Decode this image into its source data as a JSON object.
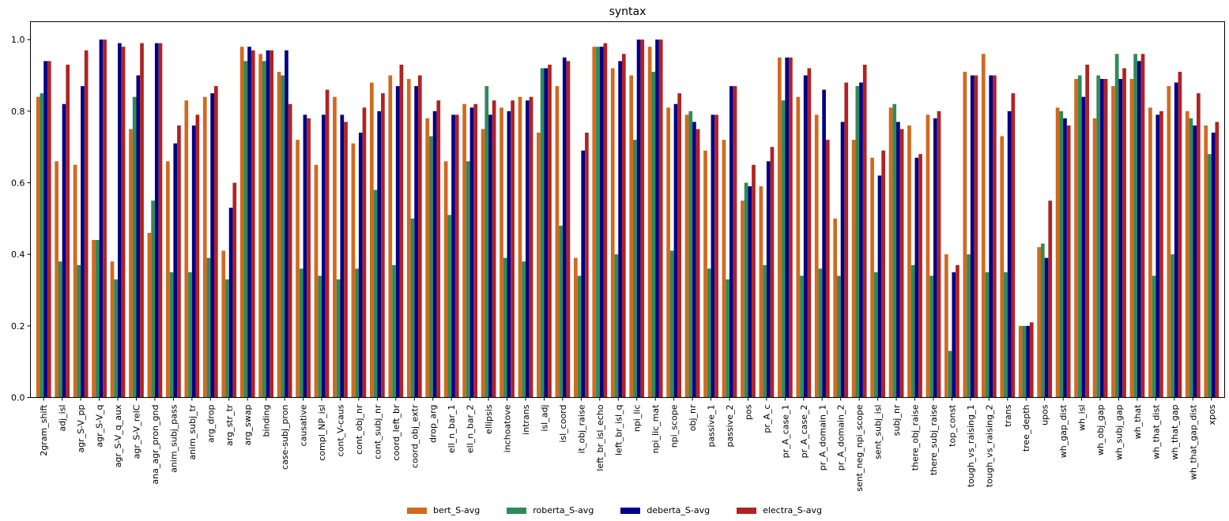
{
  "chart_data": {
    "type": "bar",
    "title": "syntax",
    "xlabel": "",
    "ylabel": "",
    "ylim": [
      0,
      1.05
    ],
    "yticks": [
      "0.0",
      "0.2",
      "0.4",
      "0.6",
      "0.8",
      "1.0"
    ],
    "legend_position": "bottom-center",
    "colors": [
      "#D2691E",
      "#2E8B57",
      "#00008B",
      "#B22222"
    ],
    "categories": [
      "2gram_shift",
      "adj_isl",
      "agr_S-V_pp",
      "agr_S-V_q",
      "agr_S-V_q_aux",
      "agr_S-V_relC",
      "ana_agr_pron_gnd",
      "anim_subj_pass",
      "anim_subj_tr",
      "arg_drop",
      "arg_str_tr",
      "arg_swap",
      "binding",
      "case-subj_pron",
      "causative",
      "compl_NP_isl",
      "cont_V-caus",
      "cont_obj_nr",
      "cont_subj_nr",
      "coord_left_br",
      "coord_obj_extr",
      "drop_arg",
      "ell_n_bar_1",
      "ell_n_bar_2",
      "ellipsis",
      "inchoatove",
      "intrans",
      "isl_adj",
      "isl_coord",
      "it_obj_raise",
      "left_br_isl_echo",
      "left_br_isl_q",
      "npi_lic",
      "npi_lic_mat",
      "npi_scope",
      "obj_nr",
      "passive_1",
      "passive_2",
      "pos",
      "pr_A_c",
      "pr_A_case_1",
      "pr_A_case_2",
      "pr_A_domain_1",
      "pr_A_domain_2",
      "sent_neg_npi_scope",
      "sent_subj_isl",
      "subj_nr",
      "there_obj_raise",
      "there_subj_raise",
      "top_const",
      "tough_vs_raising_1",
      "tough_vs_raising_2",
      "trans",
      "tree_depth",
      "upos",
      "wh_gap_dist",
      "wh_isl",
      "wh_obj_gap",
      "wh_subj_gap",
      "wh_that",
      "wh_that_dist",
      "wh_that_gap",
      "wh_that_gap_dist",
      "xpos"
    ],
    "series": [
      {
        "name": "bert_S-avg",
        "values": [
          0.84,
          0.66,
          0.65,
          0.44,
          0.38,
          0.75,
          0.46,
          0.66,
          0.83,
          0.84,
          0.41,
          0.98,
          0.96,
          0.91,
          0.72,
          0.65,
          0.84,
          0.71,
          0.88,
          0.9,
          0.89,
          0.78,
          0.66,
          0.82,
          0.75,
          0.81,
          0.84,
          0.74,
          0.87,
          0.39,
          0.98,
          0.92,
          0.9,
          0.98,
          0.81,
          0.79,
          0.69,
          0.72,
          0.55,
          0.59,
          0.95,
          0.84,
          0.79,
          0.5,
          0.72,
          0.67,
          0.81,
          0.76,
          0.79,
          0.4,
          0.91,
          0.96,
          0.73,
          0.2,
          0.42,
          0.81,
          0.89,
          0.78,
          0.87,
          0.89,
          0.81,
          0.87,
          0.8,
          0.76
        ]
      },
      {
        "name": "roberta_S-avg",
        "values": [
          0.85,
          0.38,
          0.37,
          0.44,
          0.33,
          0.84,
          0.55,
          0.35,
          0.35,
          0.39,
          0.33,
          0.94,
          0.94,
          0.9,
          0.36,
          0.34,
          0.33,
          0.36,
          0.58,
          0.37,
          0.5,
          0.73,
          0.51,
          0.66,
          0.87,
          0.39,
          0.38,
          0.92,
          0.48,
          0.34,
          0.98,
          0.4,
          0.72,
          0.91,
          0.41,
          0.8,
          0.36,
          0.33,
          0.6,
          0.37,
          0.83,
          0.34,
          0.36,
          0.34,
          0.87,
          0.35,
          0.82,
          0.37,
          0.34,
          0.13,
          0.4,
          0.35,
          0.35,
          0.2,
          0.43,
          0.8,
          0.9,
          0.9,
          0.96,
          0.96,
          0.34,
          0.4,
          0.78,
          0.68
        ]
      },
      {
        "name": "deberta_S-avg",
        "values": [
          0.94,
          0.82,
          0.87,
          1.0,
          0.99,
          0.9,
          0.99,
          0.71,
          0.76,
          0.85,
          0.53,
          0.98,
          0.97,
          0.97,
          0.79,
          0.79,
          0.79,
          0.74,
          0.8,
          0.87,
          0.87,
          0.8,
          0.79,
          0.81,
          0.79,
          0.8,
          0.83,
          0.92,
          0.95,
          0.69,
          0.98,
          0.94,
          1.0,
          1.0,
          0.82,
          0.77,
          0.79,
          0.87,
          0.59,
          0.66,
          0.95,
          0.9,
          0.86,
          0.77,
          0.88,
          0.62,
          0.77,
          0.67,
          0.78,
          0.35,
          0.9,
          0.9,
          0.8,
          0.2,
          0.39,
          0.78,
          0.84,
          0.89,
          0.89,
          0.94,
          0.79,
          0.88,
          0.76,
          0.74
        ]
      },
      {
        "name": "electra_S-avg",
        "values": [
          0.94,
          0.93,
          0.97,
          1.0,
          0.98,
          0.99,
          0.99,
          0.76,
          0.79,
          0.87,
          0.6,
          0.97,
          0.97,
          0.82,
          0.78,
          0.86,
          0.77,
          0.81,
          0.85,
          0.93,
          0.9,
          0.83,
          0.79,
          0.82,
          0.83,
          0.83,
          0.84,
          0.93,
          0.94,
          0.74,
          0.99,
          0.96,
          1.0,
          1.0,
          0.85,
          0.75,
          0.79,
          0.87,
          0.65,
          0.7,
          0.95,
          0.92,
          0.72,
          0.88,
          0.93,
          0.69,
          0.75,
          0.68,
          0.8,
          0.37,
          0.9,
          0.9,
          0.85,
          0.21,
          0.55,
          0.76,
          0.93,
          0.89,
          0.92,
          0.96,
          0.8,
          0.91,
          0.85,
          0.77
        ]
      }
    ]
  }
}
